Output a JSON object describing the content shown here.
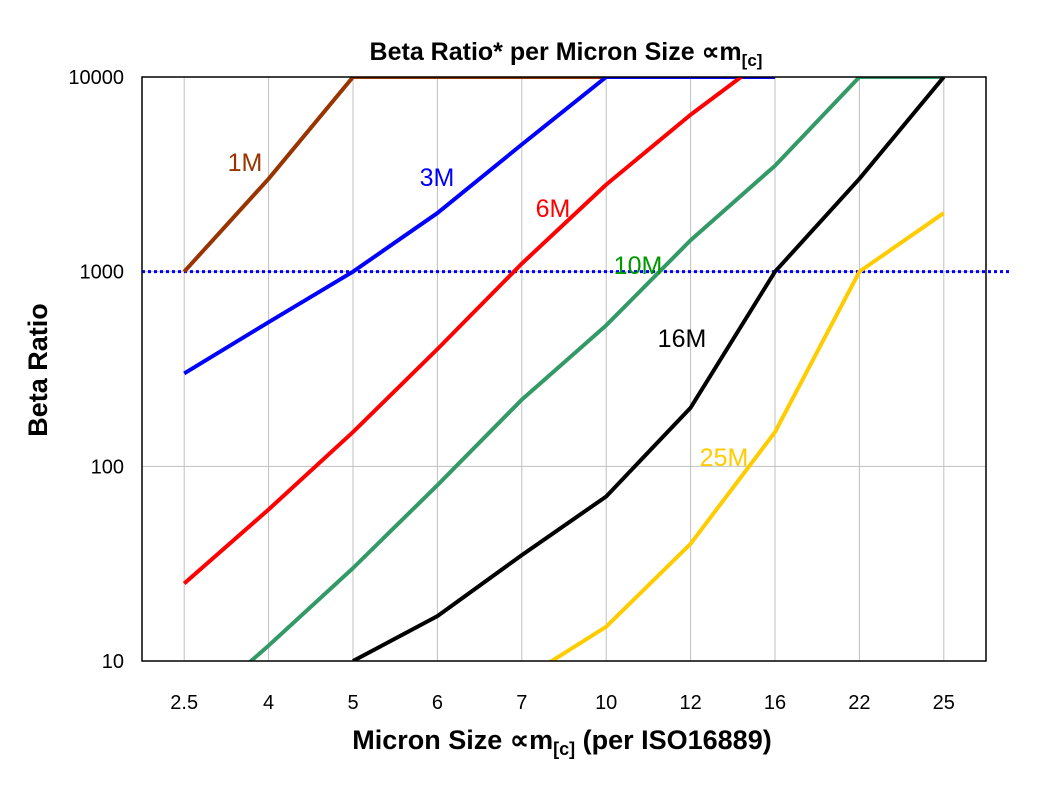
{
  "chart_data": {
    "type": "line",
    "title": "Beta Ratio* per Micron Size ∝m",
    "title_sub": "[c]",
    "xlabel": "Micron Size ∝m",
    "xlabel_sub": "[c]",
    "xlabel_suffix": " (per ISO16889)",
    "ylabel": "Beta Ratio",
    "yscale": "log",
    "ylim": [
      10,
      10000
    ],
    "yticks": [
      "10",
      "100",
      "1000",
      "10000"
    ],
    "categories": [
      "2.5",
      "4",
      "5",
      "6",
      "7",
      "10",
      "12",
      "16",
      "22",
      "25"
    ],
    "grid": true,
    "reference_line": {
      "value": 1000,
      "color": "#0000ff",
      "style": "dotted"
    },
    "series": [
      {
        "name": "1M",
        "color": "#993300",
        "values": [
          1000,
          3000,
          10000,
          10000,
          10000,
          10000,
          null,
          null,
          null,
          null
        ]
      },
      {
        "name": "3M",
        "color": "#0000ff",
        "values": [
          300,
          550,
          1000,
          2000,
          4500,
          10000,
          10000,
          10000,
          null,
          null
        ]
      },
      {
        "name": "6M",
        "color": "#ff0000",
        "values": [
          25,
          60,
          150,
          400,
          1100,
          2800,
          6400,
          13500,
          null,
          null
        ]
      },
      {
        "name": "10M",
        "color": "#339966",
        "values": [
          5,
          12,
          30,
          80,
          220,
          530,
          1450,
          3500,
          10000,
          10000
        ]
      },
      {
        "name": "16M",
        "color": "#000000",
        "values": [
          null,
          null,
          10,
          17,
          35,
          70,
          200,
          1000,
          3000,
          10000
        ]
      },
      {
        "name": "25M",
        "color": "#ffcc00",
        "values": [
          null,
          null,
          null,
          null,
          8,
          15,
          40,
          150,
          1000,
          2000
        ]
      }
    ],
    "series_label_colors": {
      "1M": "#993300",
      "3M": "#0000ff",
      "6M": "#ff0000",
      "10M": "#009900",
      "16M": "#000000",
      "25M": "#ffcc00"
    }
  }
}
